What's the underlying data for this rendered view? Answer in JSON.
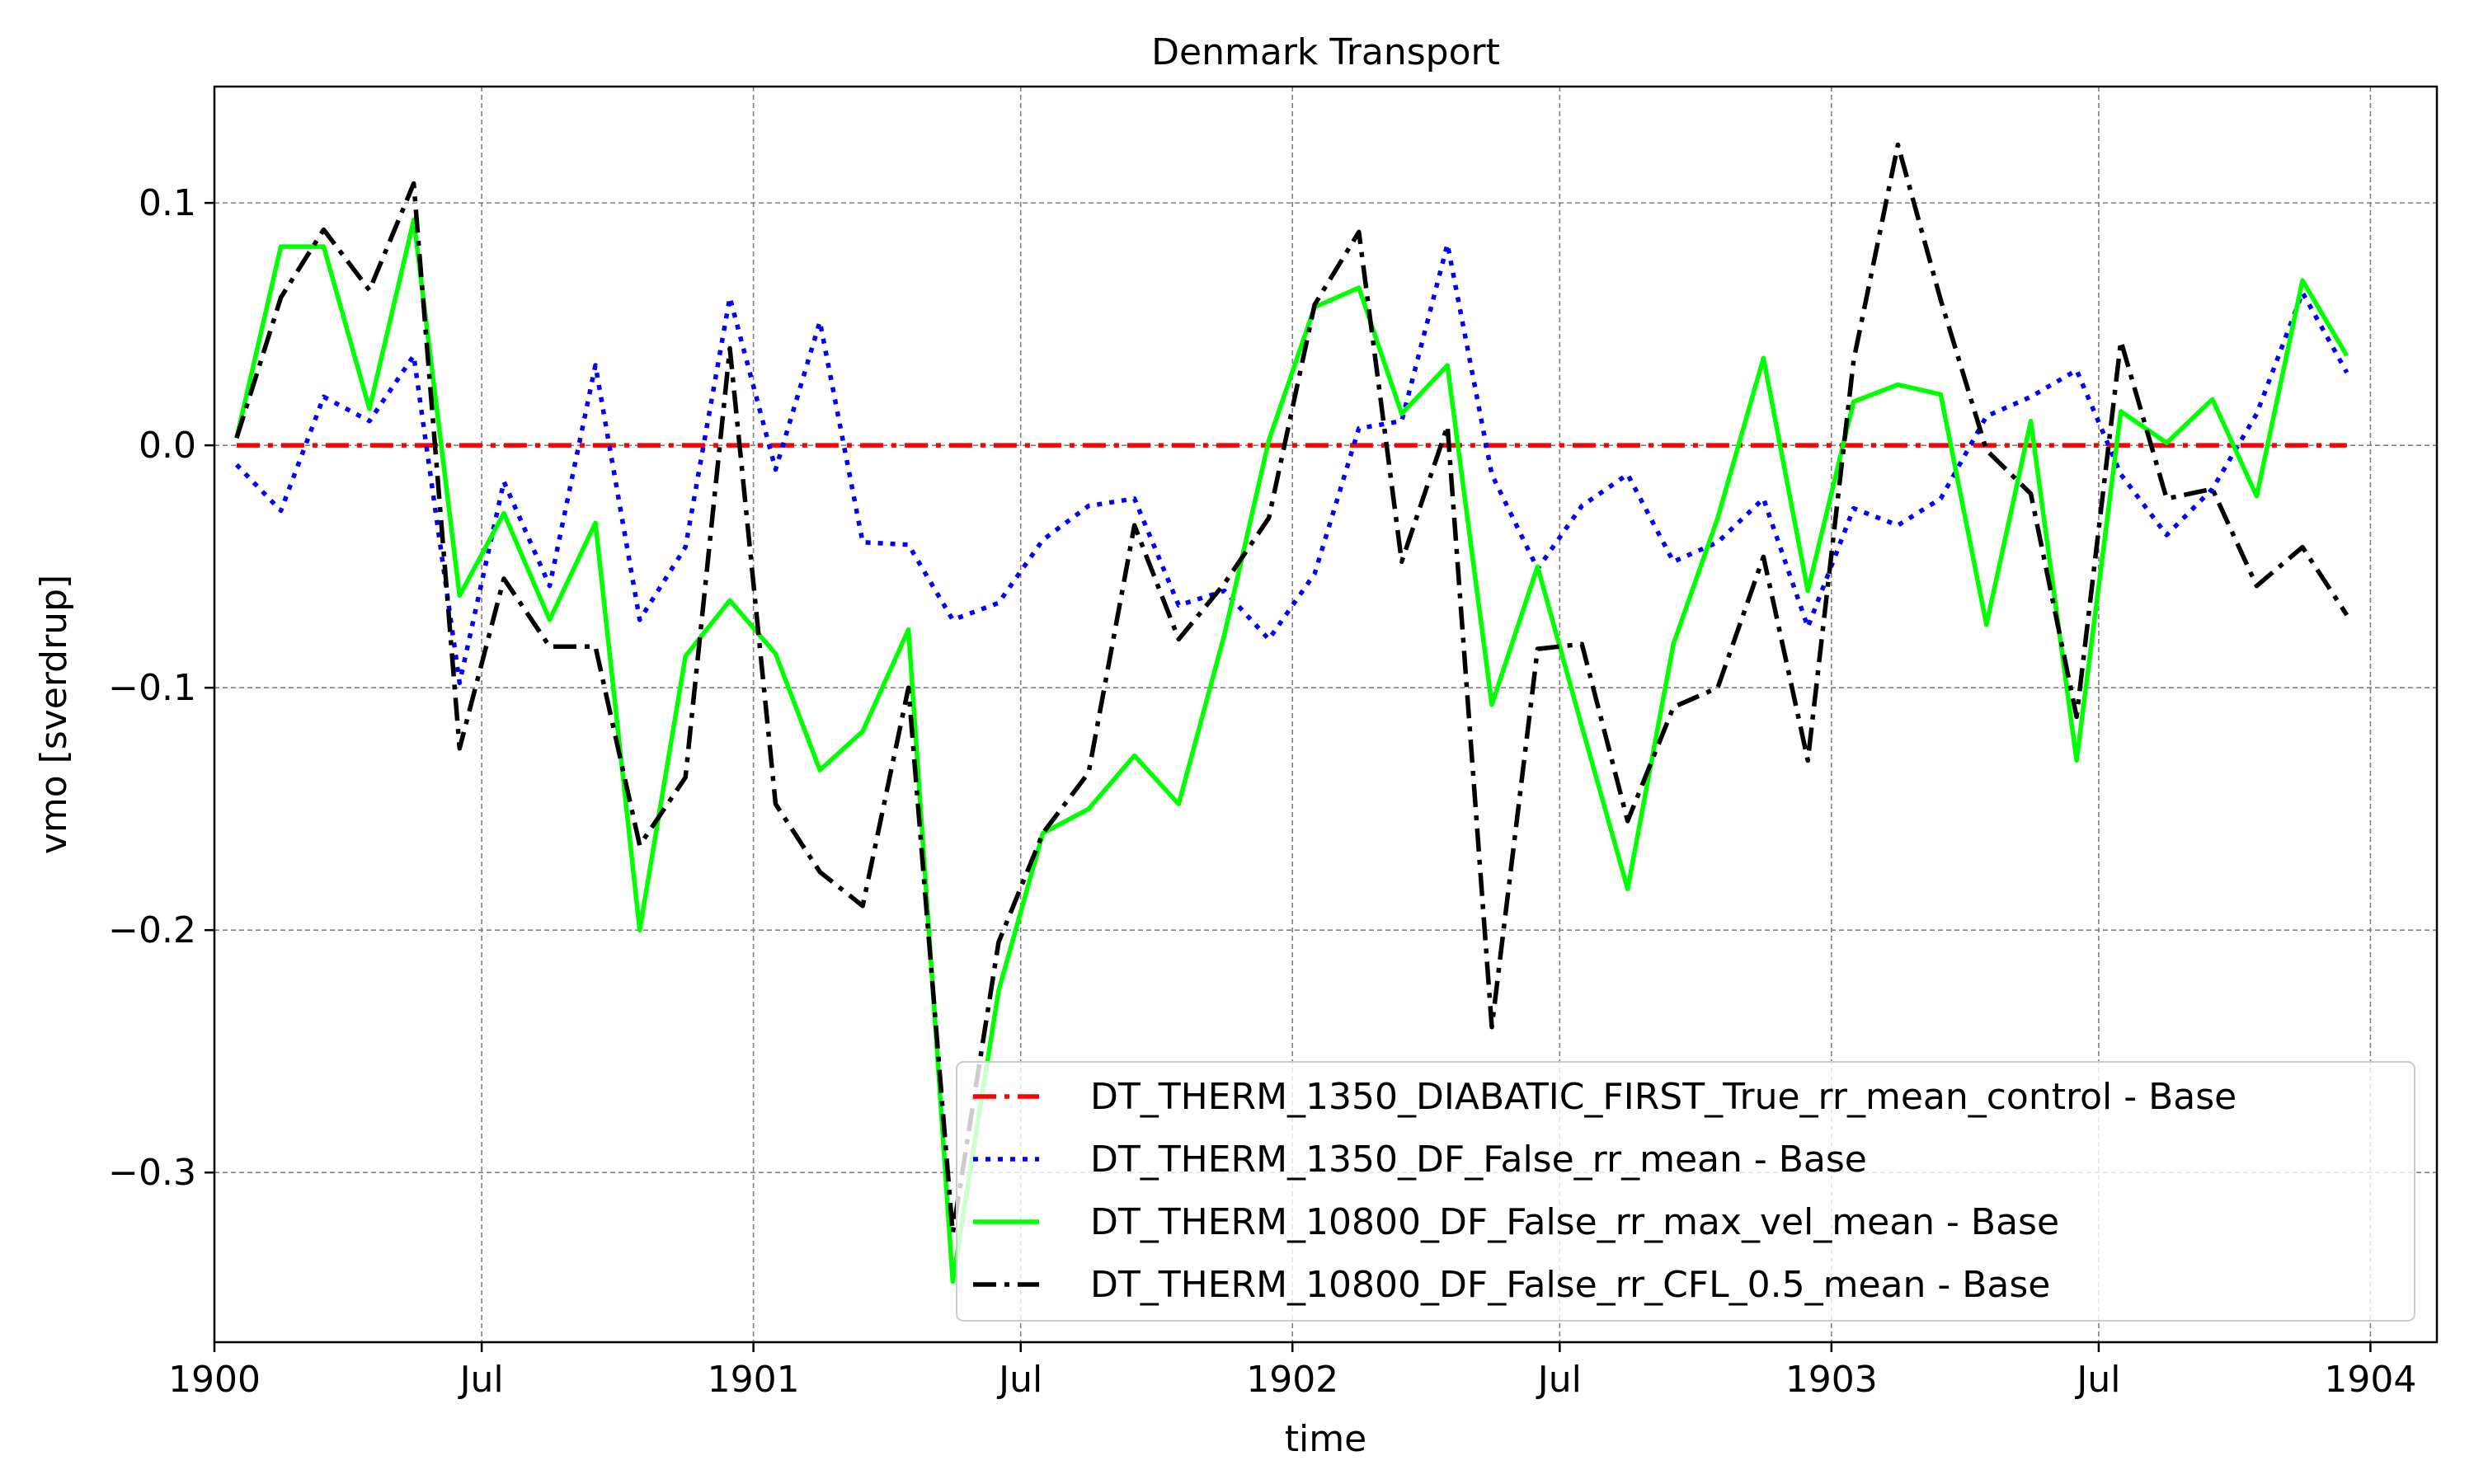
{
  "chart_data": {
    "type": "line",
    "title": "Denmark Transport",
    "xlabel": "time",
    "ylabel": "vmo [sverdrup]",
    "xlim": [
      "1900-01-01",
      "1904-02-15"
    ],
    "ylim": [
      -0.37,
      0.148
    ],
    "grid": true,
    "legend_position": "lower-right",
    "x_ticks": [
      {
        "date": "1900-01-01",
        "label": "1900"
      },
      {
        "date": "1900-07-01",
        "label": "Jul"
      },
      {
        "date": "1901-01-01",
        "label": "1901"
      },
      {
        "date": "1901-07-01",
        "label": "Jul"
      },
      {
        "date": "1902-01-01",
        "label": "1902"
      },
      {
        "date": "1902-07-01",
        "label": "Jul"
      },
      {
        "date": "1903-01-01",
        "label": "1903"
      },
      {
        "date": "1903-07-01",
        "label": "Jul"
      },
      {
        "date": "1904-01-01",
        "label": "1904"
      }
    ],
    "y_ticks": [
      {
        "value": 0.1,
        "label": "0.1"
      },
      {
        "value": 0.0,
        "label": "0.0"
      },
      {
        "value": -0.1,
        "label": "−0.1"
      },
      {
        "value": -0.2,
        "label": "−0.2"
      },
      {
        "value": -0.3,
        "label": "−0.3"
      }
    ],
    "x": [
      "1900-01-16",
      "1900-02-15",
      "1900-03-16",
      "1900-04-16",
      "1900-05-16",
      "1900-06-16",
      "1900-07-16",
      "1900-08-16",
      "1900-09-16",
      "1900-10-16",
      "1900-11-16",
      "1900-12-16",
      "1901-01-16",
      "1901-02-15",
      "1901-03-16",
      "1901-04-16",
      "1901-05-16",
      "1901-06-16",
      "1901-07-16",
      "1901-08-16",
      "1901-09-16",
      "1901-10-16",
      "1901-11-16",
      "1901-12-16",
      "1902-01-16",
      "1902-02-15",
      "1902-03-16",
      "1902-04-16",
      "1902-05-16",
      "1902-06-16",
      "1902-07-16",
      "1902-08-16",
      "1902-09-16",
      "1902-10-16",
      "1902-11-16",
      "1902-12-16",
      "1903-01-16",
      "1903-02-15",
      "1903-03-16",
      "1903-04-16",
      "1903-05-16",
      "1903-06-16",
      "1903-07-16",
      "1903-08-16",
      "1903-09-16",
      "1903-10-16",
      "1903-11-16",
      "1903-12-16"
    ],
    "series": [
      {
        "name": "DT_THERM_1350_DIABATIC_FIRST_True_rr_mean_control - Base",
        "color": "#ff0000",
        "style": "dashdot",
        "values": [
          0,
          0,
          0,
          0,
          0,
          0,
          0,
          0,
          0,
          0,
          0,
          0,
          0,
          0,
          0,
          0,
          0,
          0,
          0,
          0,
          0,
          0,
          0,
          0,
          0,
          0,
          0,
          0,
          0,
          0,
          0,
          0,
          0,
          0,
          0,
          0,
          0,
          0,
          0,
          0,
          0,
          0,
          0,
          0,
          0,
          0,
          0,
          0
        ]
      },
      {
        "name": "DT_THERM_1350_DF_False_rr_mean - Base",
        "color": "#0000ff",
        "style": "dotted",
        "values": [
          -0.008,
          -0.027,
          0.02,
          0.01,
          0.037,
          -0.098,
          -0.015,
          -0.058,
          0.033,
          -0.072,
          -0.042,
          0.061,
          -0.01,
          0.051,
          -0.04,
          -0.041,
          -0.072,
          -0.065,
          -0.039,
          -0.025,
          -0.022,
          -0.066,
          -0.06,
          -0.08,
          -0.053,
          0.007,
          0.01,
          0.083,
          -0.012,
          -0.051,
          -0.025,
          -0.012,
          -0.048,
          -0.04,
          -0.022,
          -0.075,
          -0.026,
          -0.033,
          -0.022,
          0.012,
          0.02,
          0.031,
          -0.012,
          -0.037,
          -0.018,
          0.013,
          0.063,
          0.03
        ]
      },
      {
        "name": "DT_THERM_10800_DF_False_rr_max_vel_mean - Base",
        "color": "#00ff00",
        "style": "solid",
        "values": [
          0.003,
          0.082,
          0.082,
          0.015,
          0.093,
          -0.062,
          -0.028,
          -0.072,
          -0.032,
          -0.2,
          -0.087,
          -0.064,
          -0.086,
          -0.134,
          -0.118,
          -0.076,
          -0.345,
          -0.225,
          -0.16,
          -0.15,
          -0.128,
          -0.148,
          -0.078,
          0.002,
          0.057,
          0.065,
          0.013,
          0.033,
          -0.107,
          -0.05,
          -0.116,
          -0.183,
          -0.082,
          -0.03,
          0.036,
          -0.06,
          0.018,
          0.025,
          0.021,
          -0.074,
          0.01,
          -0.13,
          0.014,
          0.001,
          0.019,
          -0.021,
          0.068,
          0.037
        ]
      },
      {
        "name": "DT_THERM_10800_DF_False_rr_CFL_0.5_mean - Base",
        "color": "#000000",
        "style": "dashdot",
        "values": [
          0.003,
          0.061,
          0.089,
          0.064,
          0.108,
          -0.125,
          -0.055,
          -0.083,
          -0.083,
          -0.165,
          -0.137,
          0.04,
          -0.148,
          -0.176,
          -0.19,
          -0.1,
          -0.325,
          -0.205,
          -0.16,
          -0.135,
          -0.033,
          -0.08,
          -0.057,
          -0.03,
          0.058,
          0.088,
          -0.048,
          0.008,
          -0.24,
          -0.084,
          -0.082,
          -0.155,
          -0.108,
          -0.1,
          -0.046,
          -0.13,
          0.035,
          0.124,
          0.06,
          -0.002,
          -0.02,
          -0.112,
          0.043,
          -0.022,
          -0.018,
          -0.058,
          -0.042,
          -0.07
        ]
      }
    ]
  }
}
